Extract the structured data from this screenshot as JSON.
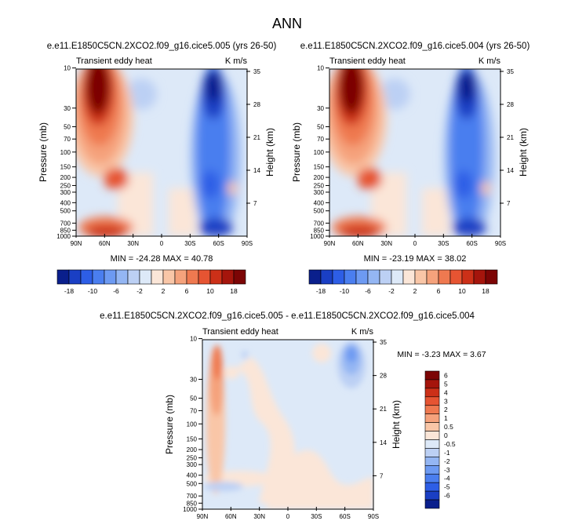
{
  "main_title": "ANN",
  "colors": {
    "diverging_18": [
      "#0a1f8c",
      "#1a3fc4",
      "#2d5ee6",
      "#4a7eef",
      "#6d9af2",
      "#94b6f3",
      "#bcd0f4",
      "#dde9f8",
      "#fbe6d8",
      "#f9c6a7",
      "#f5a27c",
      "#ef7950",
      "#e65432",
      "#cc3018",
      "#a5150c",
      "#7c0505"
    ],
    "diverging_6": [
      "#0a1f8c",
      "#1a3fc4",
      "#2d5ee6",
      "#4a7eef",
      "#6d9af2",
      "#94b6f3",
      "#bcd0f4",
      "#dde9f8",
      "#fbe6d8",
      "#f9c6a7",
      "#f5a27c",
      "#ef7950",
      "#e65432",
      "#cc3018",
      "#a5150c",
      "#7c0505"
    ]
  },
  "chart_data": [
    {
      "type": "heatmap",
      "id": "panel1",
      "title": "e.e11.E1850C5CN.2XCO2.f09_g16.cice5.005 (yrs 26-50)",
      "subtitle_left": "Transient eddy heat",
      "subtitle_right": "K m/s",
      "xlabel": "",
      "ylabel": "Pressure (mb)",
      "ylabel_right": "Height (km)",
      "x_ticks": [
        "90N",
        "60N",
        "30N",
        "0",
        "30S",
        "60S",
        "90S"
      ],
      "y_ticks": [
        "10",
        "30",
        "50",
        "70",
        "100",
        "150",
        "200",
        "250",
        "300",
        "400",
        "500",
        "700",
        "850",
        "1000"
      ],
      "y_ticks_right": [
        "35",
        "28",
        "21",
        "14",
        "7"
      ],
      "stats": "MIN = -24.28   MAX = 40.78",
      "min": -24.28,
      "max": 40.78,
      "colorbar_labels": [
        "-18",
        "-10",
        "-6",
        "-2",
        "2",
        "6",
        "10",
        "18"
      ],
      "features": [
        {
          "lat": 70,
          "p": 10,
          "value": 40.78
        },
        {
          "lat": 52,
          "p": 150,
          "value": 14
        },
        {
          "lat": 62,
          "p": 800,
          "value": 10
        },
        {
          "lat": -60,
          "p": 12,
          "value": -24.28
        },
        {
          "lat": -55,
          "p": 180,
          "value": -14
        },
        {
          "lat": -58,
          "p": 700,
          "value": -12
        }
      ]
    },
    {
      "type": "heatmap",
      "id": "panel2",
      "title": "e.e11.E1850C5CN.2XCO2.f09_g16.cice5.004 (yrs 26-50)",
      "subtitle_left": "Transient eddy heat",
      "subtitle_right": "K m/s",
      "xlabel": "",
      "ylabel": "Pressure (mb)",
      "ylabel_right": "Height (km)",
      "x_ticks": [
        "90N",
        "60N",
        "30N",
        "0",
        "30S",
        "60S",
        "90S"
      ],
      "y_ticks": [
        "10",
        "30",
        "50",
        "70",
        "100",
        "150",
        "200",
        "250",
        "300",
        "400",
        "500",
        "700",
        "850",
        "1000"
      ],
      "y_ticks_right": [
        "35",
        "28",
        "21",
        "14",
        "7"
      ],
      "stats": "MIN = -23.19   MAX = 38.02",
      "min": -23.19,
      "max": 38.02,
      "colorbar_labels": [
        "-18",
        "-10",
        "-6",
        "-2",
        "2",
        "6",
        "10",
        "18"
      ],
      "features": [
        {
          "lat": 70,
          "p": 10,
          "value": 38.02
        },
        {
          "lat": 52,
          "p": 150,
          "value": 14
        },
        {
          "lat": 62,
          "p": 800,
          "value": 10
        },
        {
          "lat": -60,
          "p": 12,
          "value": -23.19
        },
        {
          "lat": -55,
          "p": 180,
          "value": -14
        },
        {
          "lat": -58,
          "p": 700,
          "value": -12
        }
      ]
    },
    {
      "type": "heatmap",
      "id": "panel3",
      "title": "e.e11.E1850C5CN.2XCO2.f09_g16.cice5.005 - e.e11.E1850C5CN.2XCO2.f09_g16.cice5.004",
      "subtitle_left": "Transient eddy heat",
      "subtitle_right": "K m/s",
      "xlabel": "",
      "ylabel": "Pressure (mb)",
      "ylabel_right": "Height (km)",
      "x_ticks": [
        "90N",
        "60N",
        "30N",
        "0",
        "30S",
        "60S",
        "90S"
      ],
      "y_ticks": [
        "10",
        "30",
        "50",
        "70",
        "100",
        "150",
        "200",
        "250",
        "300",
        "400",
        "500",
        "700",
        "850",
        "1000"
      ],
      "y_ticks_right": [
        "35",
        "28",
        "21",
        "14",
        "7"
      ],
      "stats": "MIN = -3.23   MAX =  3.67",
      "min": -3.23,
      "max": 3.67,
      "colorbar_labels": [
        "6",
        "5",
        "4",
        "3",
        "2",
        "1",
        "0.5",
        "0",
        "-0.5",
        "-1",
        "-2",
        "-3",
        "-4",
        "-5",
        "-6"
      ],
      "features": [
        {
          "lat": 68,
          "p": 10,
          "value": 3.67
        },
        {
          "lat": -68,
          "p": 10,
          "value": -3.23
        },
        {
          "lat": 20,
          "p": 400,
          "value": 0.3
        },
        {
          "lat": -20,
          "p": 700,
          "value": 0.3
        }
      ]
    }
  ]
}
